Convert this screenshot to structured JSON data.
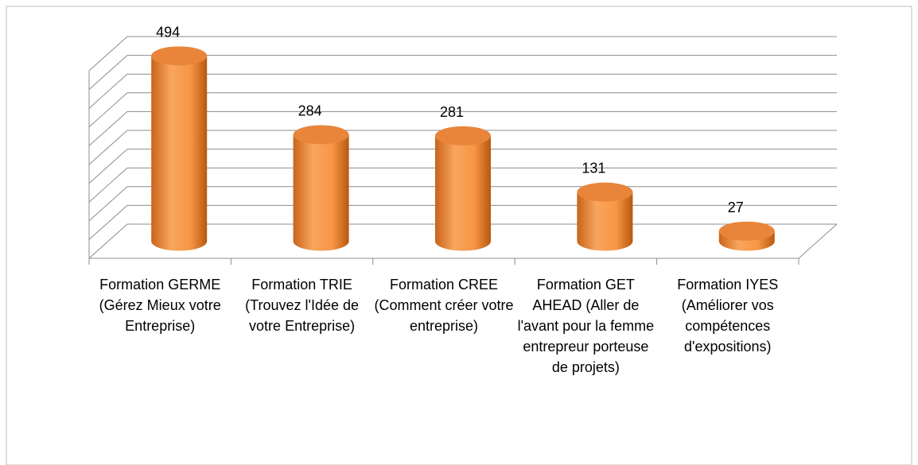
{
  "chart_data": {
    "type": "bar3d",
    "categories": [
      "Formation GERME (Gérez Mieux votre Entreprise)",
      "Formation TRIE (Trouvez l'Idée de votre Entreprise)",
      "Formation CREE (Comment créer votre entreprise)",
      "Formation GET AHEAD (Aller de l'avant pour la femme entrepreur porteuse de projets)",
      "Formation IYES (Améliorer vos compétences d'expositions)"
    ],
    "values": [
      494,
      284,
      281,
      131,
      27
    ],
    "color": "#f79646",
    "ylim": [
      0,
      500
    ],
    "yticks": [
      0,
      50,
      100,
      150,
      200,
      250,
      300,
      350,
      400,
      450,
      500
    ],
    "grid": true
  }
}
